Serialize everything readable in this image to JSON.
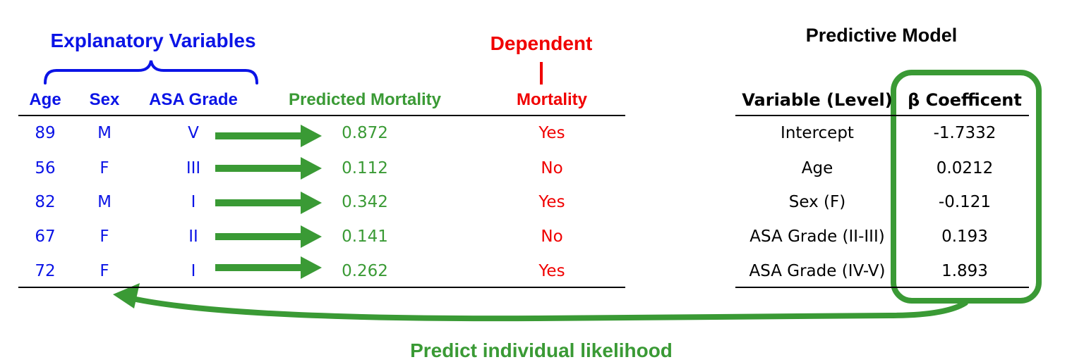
{
  "left": {
    "group_title": "Explanatory Variables",
    "dependent_title": "Dependent",
    "headers": [
      "Age",
      "Sex",
      "ASA Grade",
      "Predicted Mortality",
      "Mortality"
    ],
    "rows": [
      {
        "age": "89",
        "sex": "M",
        "asa": "V",
        "predicted": "0.872",
        "mortality": "Yes"
      },
      {
        "age": "56",
        "sex": "F",
        "asa": "III",
        "predicted": "0.112",
        "mortality": "No"
      },
      {
        "age": "82",
        "sex": "M",
        "asa": "I",
        "predicted": "0.342",
        "mortality": "Yes"
      },
      {
        "age": "67",
        "sex": "F",
        "asa": "II",
        "predicted": "0.141",
        "mortality": "No"
      },
      {
        "age": "72",
        "sex": "F",
        "asa": "I",
        "predicted": "0.262",
        "mortality": "Yes"
      }
    ]
  },
  "model": {
    "title": "Predictive Model",
    "headers": [
      "Variable (Level)",
      "β Coefficent"
    ],
    "rows": [
      {
        "variable": "Intercept",
        "coef": "-1.7332"
      },
      {
        "variable": "Age",
        "coef": "0.0212"
      },
      {
        "variable": "Sex (F)",
        "coef": "-0.121"
      },
      {
        "variable": "ASA Grade (II-III)",
        "coef": "0.193"
      },
      {
        "variable": "ASA Grade (IV-V)",
        "coef": "1.893"
      }
    ]
  },
  "caption": "Predict individual likelihood",
  "colors": {
    "explanatory": "#0b14e6",
    "dependent": "#f00000",
    "predicted": "#3a9a35",
    "model": "#000000"
  }
}
